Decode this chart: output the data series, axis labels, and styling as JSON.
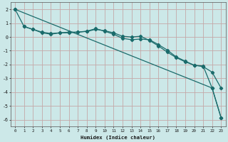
{
  "xlabel": "Humidex (Indice chaleur)",
  "bg_color": "#cce8e8",
  "grid_color": "#c4a8a8",
  "line_color": "#1a6b6b",
  "xlim": [
    -0.5,
    23.5
  ],
  "ylim": [
    -6.5,
    2.5
  ],
  "yticks": [
    2,
    1,
    0,
    -1,
    -2,
    -3,
    -4,
    -5,
    -6
  ],
  "xticks": [
    0,
    1,
    2,
    3,
    4,
    5,
    6,
    7,
    8,
    9,
    10,
    11,
    12,
    13,
    14,
    15,
    16,
    17,
    18,
    19,
    20,
    21,
    22,
    23
  ],
  "series1_x": [
    0,
    1,
    2,
    3,
    4,
    5,
    6,
    7,
    8,
    9,
    10,
    11,
    12,
    13,
    14,
    15,
    16,
    17,
    18,
    19,
    20,
    21,
    22,
    23
  ],
  "series1_y": [
    2.0,
    0.75,
    0.55,
    0.35,
    0.25,
    0.3,
    0.35,
    0.35,
    0.4,
    0.55,
    0.45,
    0.3,
    0.05,
    0.0,
    0.05,
    -0.25,
    -0.65,
    -1.1,
    -1.5,
    -1.8,
    -2.05,
    -2.15,
    -2.55,
    -3.7
  ],
  "series2_x": [
    1,
    2,
    3,
    4,
    5,
    6,
    7,
    8,
    9,
    10,
    11,
    12,
    13,
    14,
    15,
    16,
    17,
    18,
    19,
    20,
    21,
    22,
    23
  ],
  "series2_y": [
    0.75,
    0.55,
    0.3,
    0.2,
    0.3,
    0.3,
    0.35,
    0.42,
    0.6,
    0.42,
    0.2,
    -0.1,
    -0.2,
    -0.15,
    -0.2,
    -0.55,
    -0.95,
    -1.45,
    -1.75,
    -2.05,
    -2.1,
    -3.7,
    -5.85
  ],
  "series3_x": [
    0,
    22,
    23
  ],
  "series3_y": [
    2.0,
    -3.7,
    -5.85
  ]
}
